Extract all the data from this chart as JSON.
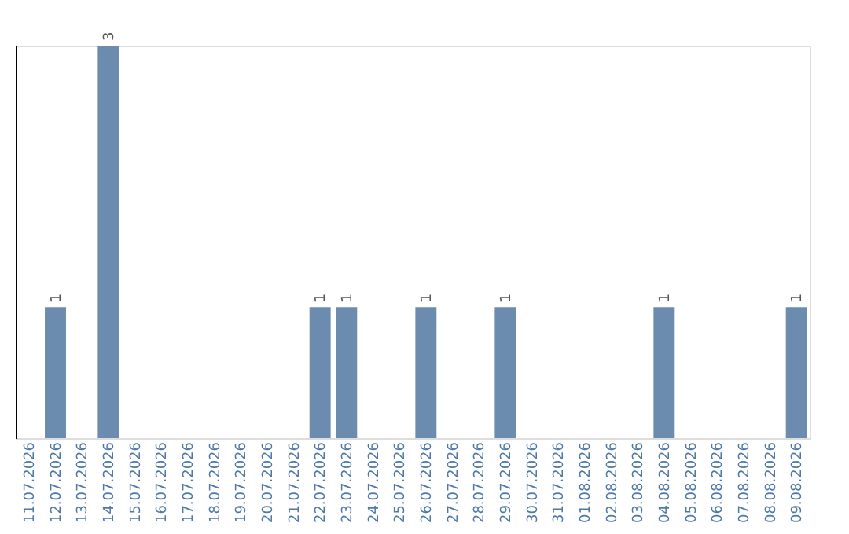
{
  "chart_data": {
    "type": "bar",
    "categories": [
      "11.07.2026",
      "12.07.2026",
      "13.07.2026",
      "14.07.2026",
      "15.07.2026",
      "16.07.2026",
      "17.07.2026",
      "18.07.2026",
      "19.07.2026",
      "20.07.2026",
      "21.07.2026",
      "22.07.2026",
      "23.07.2026",
      "24.07.2026",
      "25.07.2026",
      "26.07.2026",
      "27.07.2026",
      "28.07.2026",
      "29.07.2026",
      "30.07.2026",
      "31.07.2026",
      "01.08.2026",
      "02.08.2026",
      "03.08.2026",
      "04.08.2026",
      "05.08.2026",
      "06.08.2026",
      "07.08.2026",
      "08.08.2026",
      "09.08.2026"
    ],
    "values": [
      0,
      1,
      0,
      3,
      0,
      0,
      0,
      0,
      0,
      0,
      0,
      1,
      1,
      0,
      0,
      1,
      0,
      0,
      1,
      0,
      0,
      0,
      0,
      0,
      1,
      0,
      0,
      0,
      0,
      1
    ],
    "value_labels": [
      null,
      "1",
      null,
      "3",
      null,
      null,
      null,
      null,
      null,
      null,
      null,
      "1",
      "1",
      null,
      null,
      "1",
      null,
      null,
      "1",
      null,
      null,
      null,
      null,
      null,
      "1",
      null,
      null,
      null,
      null,
      "1"
    ],
    "color": "#6b8cae",
    "ylim": [
      0,
      3
    ],
    "tick_labels": "x",
    "grid": false
  }
}
